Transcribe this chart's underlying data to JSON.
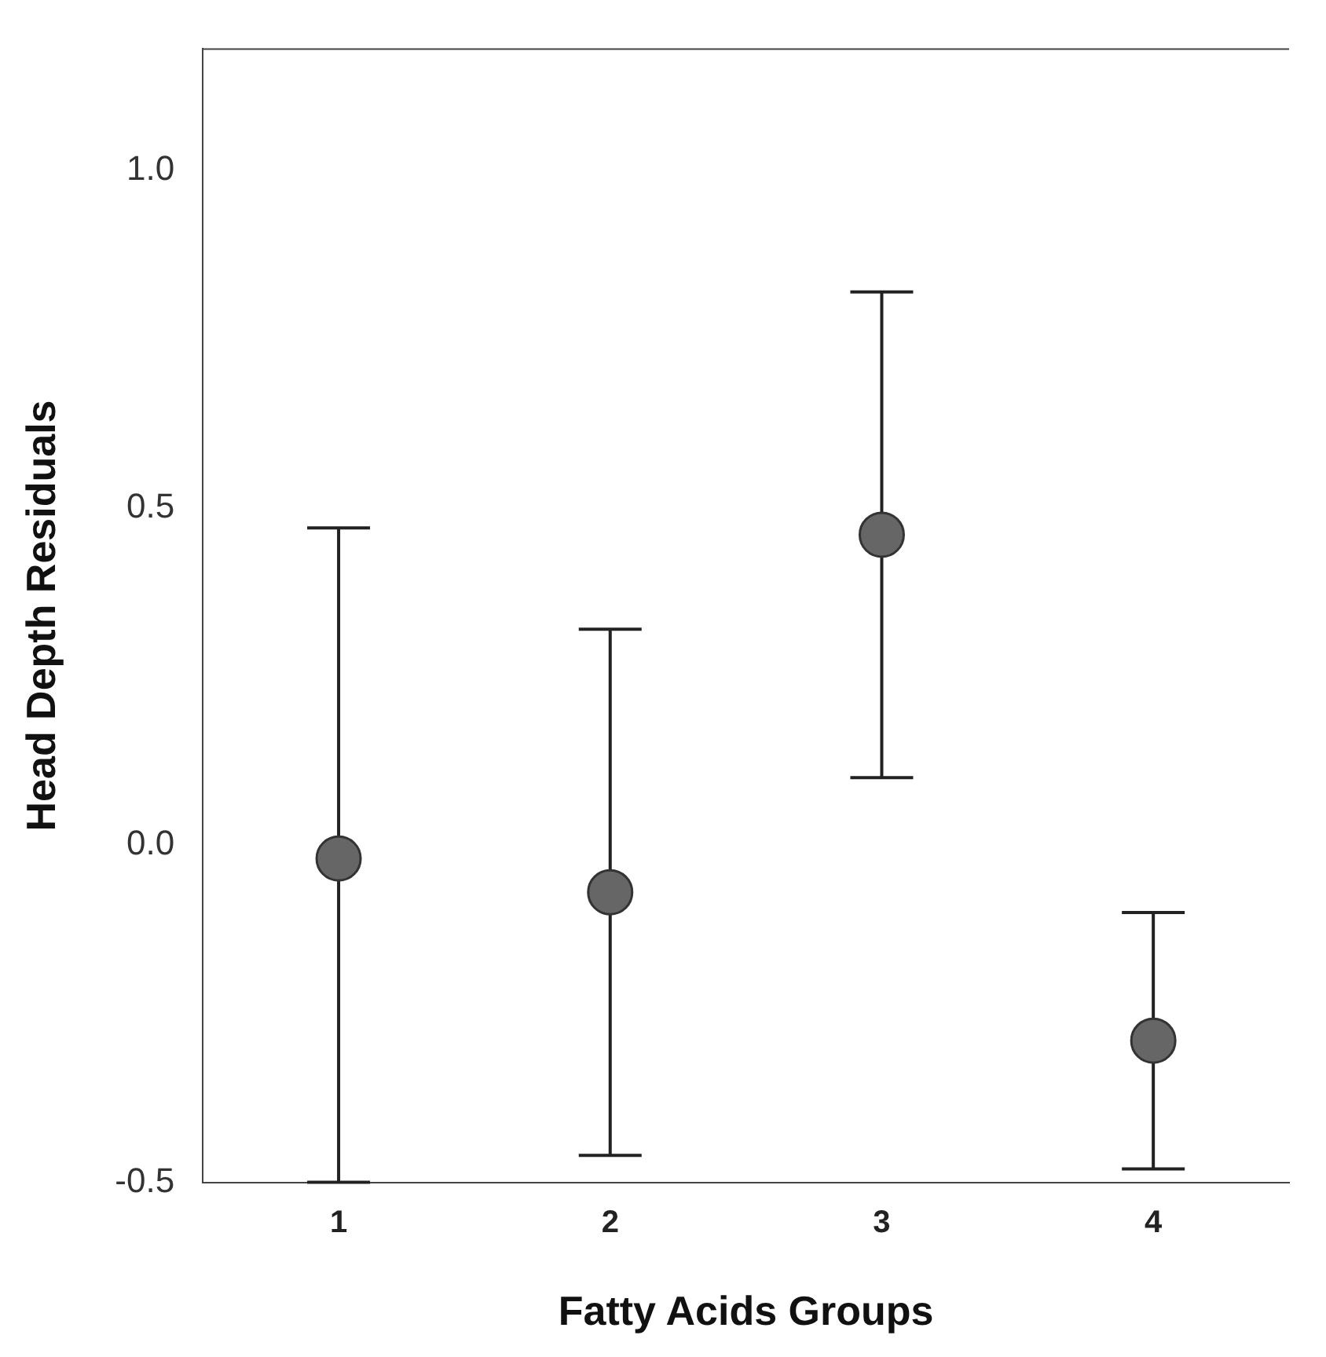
{
  "chart_data": {
    "type": "scatter",
    "xlabel": "Fatty Acids Groups",
    "ylabel": "Head Depth Residuals",
    "categories": [
      "1",
      "2",
      "3",
      "4"
    ],
    "series": [
      {
        "color": "#666666",
        "values": [
          -0.02,
          -0.07,
          0.46,
          -0.29
        ],
        "errors": [
          [
            -0.5,
            0.47
          ],
          [
            -0.46,
            0.32
          ],
          [
            0.1,
            0.82
          ],
          [
            -0.48,
            -0.1
          ]
        ]
      }
    ],
    "ylim": [
      -0.5,
      1.18
    ],
    "yticks": [
      {
        "value": -0.5,
        "label": "-0.5"
      },
      {
        "value": 0,
        "label": "0.0"
      },
      {
        "value": 0.5,
        "label": "0.5"
      },
      {
        "value": 1,
        "label": "1.0"
      }
    ],
    "grid": false,
    "legend": false,
    "marker": "circle"
  }
}
